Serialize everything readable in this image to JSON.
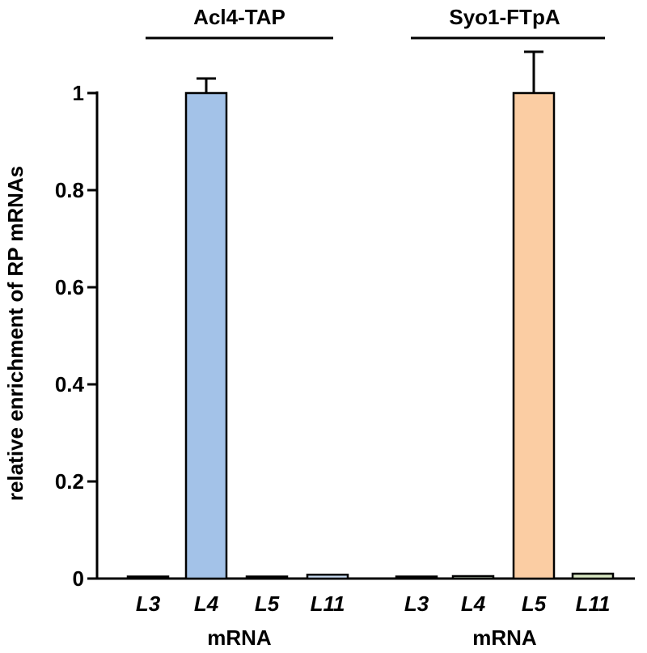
{
  "chart_data": {
    "type": "bar",
    "title": "",
    "ylabel": "relative enrichment of RP mRNAs",
    "ylim": [
      0,
      1
    ],
    "yticks": [
      0,
      0.2,
      0.4,
      0.6,
      0.8,
      1
    ],
    "ytick_labels": [
      "0",
      "0.2",
      "0.4",
      "0.6",
      "0.8",
      "1"
    ],
    "groups": [
      {
        "name": "Acl4-TAP",
        "xlabel": "mRNA",
        "categories": [
          "L3",
          "L4",
          "L5",
          "L11"
        ],
        "values": [
          0.002,
          1.0,
          0.003,
          0.008
        ],
        "errors": [
          0,
          0.03,
          0,
          0
        ],
        "colors": [
          "#c9dcf2",
          "#a3c2e8",
          "#c9dcf2",
          "#c9dcf2"
        ]
      },
      {
        "name": "Syo1-FTpA",
        "xlabel": "mRNA",
        "categories": [
          "L3",
          "L4",
          "L5",
          "L11"
        ],
        "values": [
          0.004,
          0.005,
          1.0,
          0.01
        ],
        "errors": [
          0,
          0,
          0.085,
          0
        ],
        "colors": [
          "#d6e7d0",
          "#d6e7d0",
          "#fbcda3",
          "#d9e8c4"
        ]
      }
    ]
  }
}
